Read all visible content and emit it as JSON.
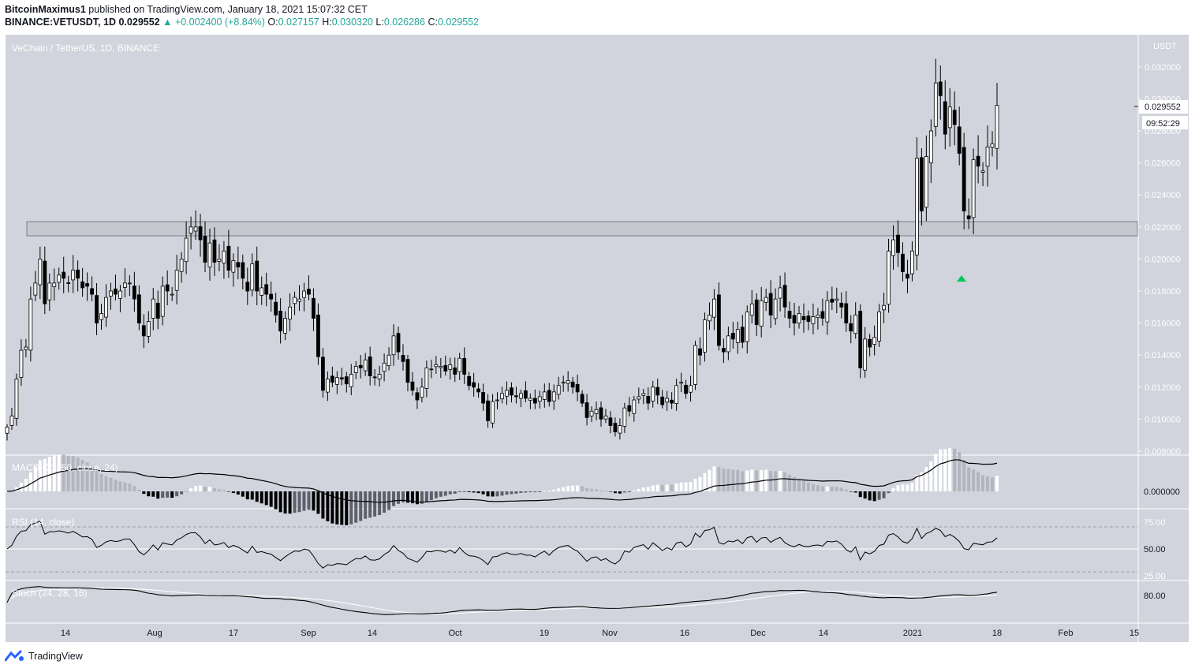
{
  "header": {
    "author": "BitcoinMaximus1",
    "published": "published on TradingView.com, January 18, 2021 15:07:32 CET",
    "symbol": "BINANCE:VETUSDT, 1D",
    "last": "0.029552",
    "change": "▲ +0.002400 (+8.84%)",
    "o_label": "O:",
    "o": "0.027157",
    "h_label": "H:",
    "h": "0.030320",
    "l_label": "L:",
    "l": "0.026286",
    "c_label": "C:",
    "c": "0.029552"
  },
  "pane_title": "VeChain / TetherUS, 1D, BINANCE",
  "price_unit": "USDT",
  "last_price_label": "0.029552",
  "countdown": "09:52:29",
  "footer": {
    "brand": "TradingView",
    "logo_icon": "tradingview-logo-icon"
  },
  "colors": {
    "pane_bg": "#d1d4dc",
    "up": "#ffffff",
    "down": "#000000",
    "marker": "#00c853",
    "zone_fill": "#c5c8cf"
  },
  "chart_data": {
    "type": "candlestick",
    "title": "VeChain / TetherUS, 1D, BINANCE",
    "price_axis": {
      "ticks": [
        "0.008000",
        "0.010000",
        "0.012000",
        "0.014000",
        "0.016000",
        "0.018000",
        "0.020000",
        "0.022000",
        "0.024000",
        "0.026000",
        "0.028000",
        "0.030000",
        "0.032000",
        "0.034000"
      ],
      "range": [
        0.0079,
        0.0345
      ]
    },
    "x_axis_labels": [
      "14",
      "Aug",
      "17",
      "Sep",
      "14",
      "Oct",
      "19",
      "Nov",
      "16",
      "Dec",
      "14",
      "2021",
      "18",
      "Feb",
      "15"
    ],
    "support_zone": [
      0.0215,
      0.0224
    ],
    "marker": {
      "type": "triangle-up",
      "near_low": 0.0188
    },
    "closes": [
      0.0095,
      0.0102,
      0.0125,
      0.0143,
      0.0145,
      0.0175,
      0.0185,
      0.02,
      0.0172,
      0.0185,
      0.0185,
      0.019,
      0.0188,
      0.0185,
      0.0193,
      0.0188,
      0.0182,
      0.0183,
      0.0178,
      0.016,
      0.0166,
      0.0176,
      0.018,
      0.0178,
      0.018,
      0.0185,
      0.0185,
      0.0175,
      0.016,
      0.0152,
      0.0161,
      0.0175,
      0.0163,
      0.0183,
      0.018,
      0.0178,
      0.0193,
      0.02,
      0.0213,
      0.022,
      0.022,
      0.0212,
      0.0198,
      0.021,
      0.0198,
      0.02,
      0.0205,
      0.0193,
      0.0199,
      0.0195,
      0.0188,
      0.018,
      0.0197,
      0.018,
      0.0182,
      0.0178,
      0.0175,
      0.0165,
      0.0155,
      0.0163,
      0.017,
      0.0176,
      0.0175,
      0.018,
      0.0178,
      0.0163,
      0.0139,
      0.0118,
      0.0125,
      0.0123,
      0.0126,
      0.0125,
      0.0122,
      0.0128,
      0.0133,
      0.0132,
      0.0137,
      0.0127,
      0.0126,
      0.0128,
      0.0135,
      0.014,
      0.0152,
      0.0142,
      0.0136,
      0.0123,
      0.0118,
      0.0112,
      0.012,
      0.0132,
      0.0131,
      0.0134,
      0.0133,
      0.013,
      0.0134,
      0.0128,
      0.0138,
      0.0128,
      0.0121,
      0.012,
      0.0117,
      0.011,
      0.0099,
      0.0111,
      0.0112,
      0.0116,
      0.0118,
      0.0115,
      0.0114,
      0.0116,
      0.0113,
      0.0113,
      0.011,
      0.0114,
      0.0117,
      0.0111,
      0.0117,
      0.0121,
      0.0123,
      0.0124,
      0.012,
      0.0117,
      0.011,
      0.0101,
      0.0105,
      0.0106,
      0.01,
      0.0102,
      0.0096,
      0.0092,
      0.0096,
      0.0107,
      0.0105,
      0.0112,
      0.0114,
      0.0116,
      0.011,
      0.012,
      0.0115,
      0.0109,
      0.0113,
      0.011,
      0.0121,
      0.0123,
      0.0116,
      0.0121,
      0.0146,
      0.014,
      0.0162,
      0.0165,
      0.0175,
      0.0146,
      0.0142,
      0.0152,
      0.015,
      0.0156,
      0.0148,
      0.0167,
      0.0172,
      0.0159,
      0.0174,
      0.0176,
      0.0165,
      0.0175,
      0.0182,
      0.017,
      0.0163,
      0.016,
      0.0166,
      0.0162,
      0.0161,
      0.0164,
      0.0165,
      0.0163,
      0.0174,
      0.0173,
      0.0175,
      0.017,
      0.016,
      0.0155,
      0.0165,
      0.0132,
      0.015,
      0.0145,
      0.0151,
      0.0167,
      0.0171,
      0.0205,
      0.0212,
      0.0204,
      0.0192,
      0.0188,
      0.0205,
      0.0263,
      0.023,
      0.0264,
      0.028,
      0.031,
      0.0302,
      0.0278,
      0.0295,
      0.0284,
      0.0266,
      0.023,
      0.0225,
      0.0262,
      0.0258,
      0.0255,
      0.027,
      0.0272,
      0.0296
    ],
    "macd": {
      "label": "MACD (21, 50, close, 24)",
      "tick": "0.000000"
    },
    "rsi": {
      "label": "RSI (14, close)",
      "ticks": [
        "75.00",
        "50.00",
        "25.00"
      ]
    },
    "stoch": {
      "label": "Stoch (24, 28, 16)",
      "tick": "80.00"
    }
  }
}
